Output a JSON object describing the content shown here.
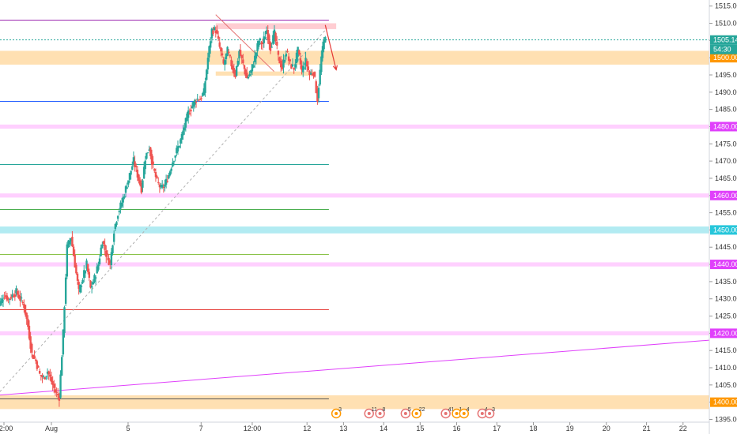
{
  "chart_data": {
    "type": "candlestick",
    "y_axis": {
      "range": [
        1394.4,
        1516.5
      ],
      "ticks": [
        1395.0,
        1400.0,
        1405.0,
        1410.0,
        1415.0,
        1420.0,
        1425.0,
        1430.0,
        1435.0,
        1440.0,
        1445.0,
        1450.0,
        1455.0,
        1460.0,
        1465.0,
        1470.0,
        1475.0,
        1480.0,
        1485.0,
        1490.0,
        1495.0,
        1500.0,
        1505.0,
        1510.0,
        1515.0
      ],
      "tick_labels": [
        "1395.00",
        "1400.00",
        "1405.00",
        "1410.00",
        "1415.00",
        "1420.00",
        "1425.00",
        "1430.00",
        "1435.00",
        "1440.00",
        "1445.00",
        "1450.00",
        "1455.00",
        "1460.00",
        "1465.00",
        "1470.00",
        "1475.00",
        "1480.00",
        "1485.00",
        "1490.00",
        "1495.00",
        "1500.00",
        "1505.00",
        "1510.00",
        "1515.00"
      ]
    },
    "x_axis": {
      "range": [
        0,
        200
      ],
      "ticks": [
        {
          "x": 2,
          "label": "12:00"
        },
        {
          "x": 15,
          "label": "Aug"
        },
        {
          "x": 36,
          "label": "5"
        },
        {
          "x": 56,
          "label": "7"
        },
        {
          "x": 70,
          "label": "12:00"
        },
        {
          "x": 85,
          "label": "12"
        },
        {
          "x": 95,
          "label": "13"
        },
        {
          "x": 106,
          "label": "14"
        },
        {
          "x": 116,
          "label": "15"
        },
        {
          "x": 126,
          "label": "16"
        },
        {
          "x": 137,
          "label": "17"
        },
        {
          "x": 147,
          "label": "18"
        },
        {
          "x": 157,
          "label": "19"
        },
        {
          "x": 167,
          "label": "20"
        },
        {
          "x": 178,
          "label": "21"
        },
        {
          "x": 188,
          "label": "22"
        }
      ]
    },
    "current_price": {
      "value": 1505.14,
      "label": "1505.14",
      "countdown": "54:30",
      "color": "#26a69a"
    },
    "bull_color": "#26a69a",
    "bear_color": "#ef5350",
    "series": [
      {
        "anchors": [
          [
            0,
            1427.5
          ],
          [
            2,
            1429
          ],
          [
            4,
            1431
          ],
          [
            6,
            1430
          ],
          [
            8,
            1431
          ],
          [
            10,
            1432
          ],
          [
            12,
            1430
          ],
          [
            13,
            1428
          ],
          [
            14,
            1422
          ],
          [
            15,
            1414
          ],
          [
            16,
            1412
          ],
          [
            17,
            1408
          ],
          [
            18,
            1407
          ],
          [
            19,
            1409
          ],
          [
            20,
            1406
          ],
          [
            21,
            1403
          ],
          [
            22,
            1401.5
          ],
          [
            23,
            1420
          ],
          [
            24,
            1445
          ],
          [
            25,
            1448
          ],
          [
            26,
            1440
          ],
          [
            27,
            1432
          ],
          [
            28,
            1436
          ],
          [
            29,
            1440
          ],
          [
            30,
            1433
          ],
          [
            31,
            1436
          ],
          [
            32,
            1440
          ],
          [
            33,
            1447
          ],
          [
            34,
            1443
          ],
          [
            35,
            1440
          ],
          [
            36,
            1450
          ],
          [
            37,
            1455
          ],
          [
            38,
            1458
          ],
          [
            39,
            1462
          ],
          [
            40,
            1466
          ],
          [
            41,
            1470
          ],
          [
            42,
            1466
          ],
          [
            43,
            1462
          ],
          [
            44,
            1471
          ],
          [
            45,
            1474
          ],
          [
            46,
            1468
          ],
          [
            47,
            1464
          ],
          [
            48,
            1462
          ],
          [
            49,
            1463
          ],
          [
            50,
            1466
          ],
          [
            51,
            1470
          ],
          [
            52,
            1473
          ],
          [
            53,
            1476
          ],
          [
            54,
            1480
          ],
          [
            55,
            1484
          ],
          [
            56,
            1486
          ],
          [
            57,
            1488
          ],
          [
            58,
            1488
          ],
          [
            59,
            1490
          ],
          [
            60,
            1500
          ],
          [
            61,
            1508
          ],
          [
            62,
            1508
          ],
          [
            63,
            1503
          ],
          [
            64,
            1498
          ],
          [
            65,
            1502
          ],
          [
            66,
            1498
          ],
          [
            67,
            1495
          ],
          [
            68,
            1502
          ],
          [
            69,
            1498
          ],
          [
            70,
            1494
          ],
          [
            71,
            1496
          ],
          [
            72,
            1500
          ],
          [
            73,
            1505
          ],
          [
            74,
            1504
          ],
          [
            75,
            1508
          ],
          [
            76,
            1503
          ],
          [
            77,
            1507
          ],
          [
            78,
            1500
          ],
          [
            79,
            1497
          ],
          [
            80,
            1502
          ],
          [
            81,
            1498
          ],
          [
            82,
            1497
          ],
          [
            83,
            1502
          ],
          [
            84,
            1496
          ],
          [
            85,
            1499
          ],
          [
            86,
            1495
          ],
          [
            87,
            1496
          ],
          [
            88,
            1488
          ],
          [
            89,
            1500
          ],
          [
            90,
            1507
          ]
        ]
      }
    ],
    "horizontal_lines": [
      {
        "price": 1511.0,
        "color": "#9c27b0",
        "x_end": 91
      },
      {
        "price": 1505.4,
        "color": "#26a69a",
        "dashed": true,
        "x_end": 200
      },
      {
        "price": 1487.5,
        "color": "#2962ff",
        "x_end": 91
      },
      {
        "price": 1469.0,
        "color": "#26a69a",
        "x_end": 91
      },
      {
        "price": 1456.0,
        "color": "#4caf50",
        "x_end": 91
      },
      {
        "price": 1443.0,
        "color": "#8bc34a",
        "x_end": 91
      },
      {
        "price": 1427.0,
        "color": "#e53935",
        "x_end": 91
      },
      {
        "price": 1401.0,
        "color": "#555555",
        "x_end": 91
      }
    ],
    "zones": [
      {
        "y1": 1498.0,
        "y2": 1502.0,
        "color": "#ffe0b2",
        "label": "1500.00",
        "label_color": "#ff9800",
        "label_text_color": "#ffffff"
      },
      {
        "y1": 1479.4,
        "y2": 1480.6,
        "color": "#ffd0ff",
        "label": "1480.00",
        "label_color": "#e040fb",
        "label_text_color": "#ffffff"
      },
      {
        "y1": 1459.4,
        "y2": 1460.6,
        "color": "#ffd0ff",
        "label": "1460.00",
        "label_color": "#e040fb",
        "label_text_color": "#ffffff"
      },
      {
        "y1": 1449.0,
        "y2": 1451.0,
        "color": "#b2ebf2",
        "label": "1450.00",
        "label_color": "#26c6da",
        "label_text_color": "#ffffff"
      },
      {
        "y1": 1439.4,
        "y2": 1440.6,
        "color": "#ffd0ff",
        "label": "1440.00",
        "label_color": "#e040fb",
        "label_text_color": "#ffffff"
      },
      {
        "y1": 1419.4,
        "y2": 1420.6,
        "color": "#ffd0ff",
        "label": "1420.00",
        "label_color": "#e040fb",
        "label_text_color": "#ffffff"
      },
      {
        "y1": 1398.0,
        "y2": 1402.0,
        "color": "#ffe0b2",
        "label": "1400.00",
        "label_color": "#ff9800",
        "label_text_color": "#ffffff"
      }
    ],
    "boxes": [
      {
        "x1": 60,
        "x2": 93,
        "y1": 1508.3,
        "y2": 1510.0,
        "color": "#ffcdd2"
      },
      {
        "x1": 60,
        "x2": 87,
        "y1": 1494.8,
        "y2": 1496.0,
        "color": "#ffe0b2"
      }
    ],
    "trend_lines": [
      {
        "x1": 0,
        "y1": 1402,
        "x2": 200,
        "y2": 1418,
        "color": "#e040fb",
        "dashed": false
      },
      {
        "x1": 0,
        "y1": 1402,
        "x2": 90,
        "y2": 1508,
        "color": "#b0b0b0",
        "dashed": true
      },
      {
        "x1": 60,
        "y1": 1512.5,
        "x2": 76,
        "y2": 1496,
        "color": "#e57373",
        "dashed": false
      }
    ],
    "arrow": {
      "x1": 90,
      "y1": 1509.5,
      "x2": 93,
      "y2": 1496.5,
      "color": "#e53935"
    },
    "events": [
      {
        "x": 93,
        "label": "3",
        "color": "#ff9800"
      },
      {
        "x": 102,
        "label": "11",
        "color": "#e57373"
      },
      {
        "x": 105,
        "label": "8",
        "color": "#e57373"
      },
      {
        "x": 112,
        "label": "5",
        "color": "#e57373"
      },
      {
        "x": 115,
        "label": "22",
        "color": "#ff9800"
      },
      {
        "x": 123,
        "label": "41",
        "color": "#e57373"
      },
      {
        "x": 126,
        "label": "1",
        "color": "#ff9800"
      },
      {
        "x": 128,
        "label": "4",
        "color": "#ff9800"
      },
      {
        "x": 133,
        "label": "4",
        "color": "#e57373"
      },
      {
        "x": 135,
        "label": "3",
        "color": "#e57373"
      }
    ]
  }
}
